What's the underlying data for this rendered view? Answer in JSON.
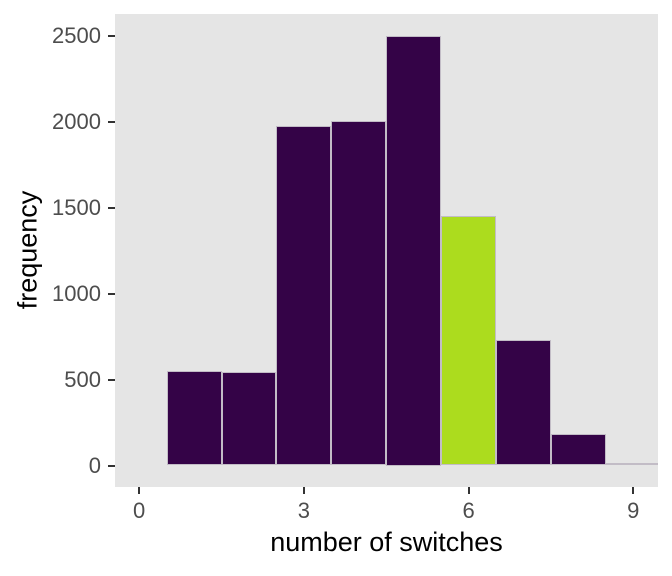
{
  "figure": {
    "xlabel": "number of switches",
    "ylabel": "frequency"
  },
  "chart_data": {
    "type": "bar",
    "subtype": "histogram",
    "title": "",
    "xlabel": "number of switches",
    "ylabel": "frequency",
    "bin_centers": [
      1,
      2,
      3,
      4,
      5,
      6,
      7,
      8,
      9
    ],
    "bin_width": 1,
    "values": [
      550,
      545,
      1975,
      2005,
      2500,
      1450,
      730,
      185,
      15
    ],
    "highlighted_bin": 6,
    "x_ticks": [
      0,
      3,
      6,
      9
    ],
    "y_ticks": [
      0,
      500,
      1000,
      1500,
      2000,
      2500
    ],
    "xlim": [
      -0.44,
      9.45
    ],
    "ylim": [
      -125,
      2625
    ],
    "grid": false,
    "legend": "none",
    "colors": {
      "bar_fill": "#340347",
      "highlight_fill": "#acdc1e",
      "bar_border": "#c2bcc6",
      "panel_background": "#e5e5e5",
      "tick_label": "#4d4d4d",
      "axis_title": "#000000",
      "tick_mark": "#333333"
    }
  }
}
